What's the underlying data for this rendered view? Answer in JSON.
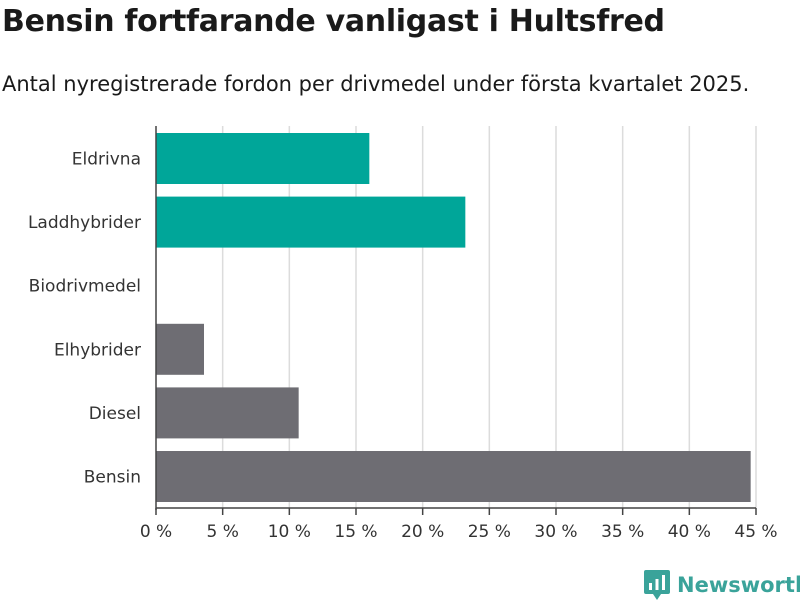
{
  "title": "Bensin fortfarande vanligast i Hultsfred",
  "subtitle": "Antal nyregistrerade fordon per drivmedel under första kvartalet 2025.",
  "brand": {
    "name": "Newsworthy",
    "color": "#3aa39a",
    "icon": "bar-chart-logo-icon"
  },
  "chart_data": {
    "type": "bar",
    "orientation": "horizontal",
    "title": "Bensin fortfarande vanligast i Hultsfred",
    "subtitle": "Antal nyregistrerade fordon per drivmedel under första kvartalet 2025.",
    "xlabel": "",
    "ylabel": "",
    "xlim": [
      0,
      45
    ],
    "x_ticks": [
      0,
      5,
      10,
      15,
      20,
      25,
      30,
      35,
      40,
      45
    ],
    "x_tick_labels": [
      "0 %",
      "5 %",
      "10 %",
      "15 %",
      "20 %",
      "25 %",
      "30 %",
      "35 %",
      "40 %",
      "45 %"
    ],
    "grid": "vertical",
    "categories": [
      "Eldrivna",
      "Laddhybrider",
      "Biodrivmedel",
      "Elhybrider",
      "Diesel",
      "Bensin"
    ],
    "values": [
      16.0,
      23.2,
      0,
      3.6,
      10.7,
      44.6
    ],
    "colors": [
      "#00a699",
      "#00a699",
      "#00a699",
      "#6e6d73",
      "#6e6d73",
      "#6e6d73"
    ]
  }
}
